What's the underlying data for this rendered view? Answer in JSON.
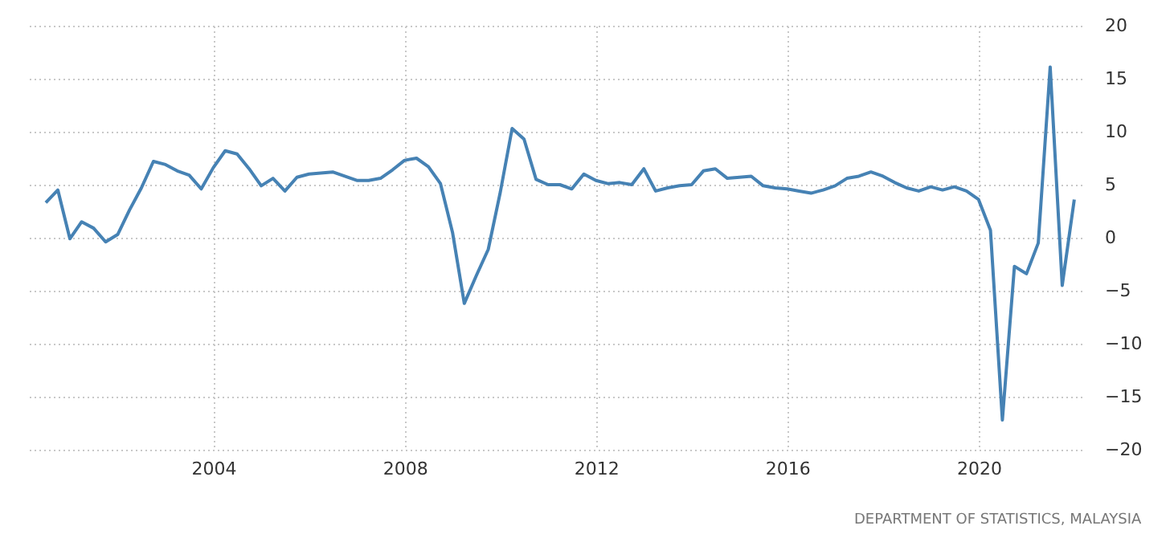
{
  "chart_data": {
    "type": "line",
    "annotations": [
      "DEPARTMENT OF STATISTICS, MALAYSIA"
    ],
    "x": [
      "2000-06-30",
      "2000-09-30",
      "2000-12-31",
      "2001-03-31",
      "2001-06-30",
      "2001-09-30",
      "2001-12-31",
      "2002-03-31",
      "2002-06-30",
      "2002-09-30",
      "2002-12-31",
      "2003-03-31",
      "2003-06-30",
      "2003-09-30",
      "2003-12-31",
      "2004-03-31",
      "2004-06-30",
      "2004-09-30",
      "2004-12-31",
      "2005-03-31",
      "2005-06-30",
      "2005-09-30",
      "2005-12-31",
      "2006-03-31",
      "2006-06-30",
      "2006-09-30",
      "2006-12-31",
      "2007-03-31",
      "2007-06-30",
      "2007-09-30",
      "2007-12-31",
      "2008-03-31",
      "2008-06-30",
      "2008-09-30",
      "2008-12-31",
      "2009-03-31",
      "2009-06-30",
      "2009-09-30",
      "2009-12-31",
      "2010-03-31",
      "2010-06-30",
      "2010-09-30",
      "2010-12-31",
      "2011-03-31",
      "2011-06-30",
      "2011-09-30",
      "2011-12-31",
      "2012-03-31",
      "2012-06-30",
      "2012-09-30",
      "2012-12-31",
      "2013-03-31",
      "2013-06-30",
      "2013-09-30",
      "2013-12-31",
      "2014-03-31",
      "2014-06-30",
      "2014-09-30",
      "2014-12-31",
      "2015-03-31",
      "2015-06-30",
      "2015-09-30",
      "2015-12-31",
      "2016-03-31",
      "2016-06-30",
      "2016-09-30",
      "2016-12-31",
      "2017-03-31",
      "2017-06-30",
      "2017-09-30",
      "2017-12-31",
      "2018-03-31",
      "2018-06-30",
      "2018-09-30",
      "2018-12-31",
      "2019-03-31",
      "2019-06-30",
      "2019-09-30",
      "2019-12-31",
      "2020-03-31",
      "2020-06-30",
      "2020-09-30",
      "2020-12-31",
      "2021-03-31",
      "2021-06-30",
      "2021-09-30",
      "2021-12-31"
    ],
    "series": [
      {
        "color": "#4682b4",
        "values": [
          3.3,
          4.5,
          -0.1,
          1.5,
          0.9,
          -0.4,
          0.3,
          2.6,
          4.7,
          7.2,
          6.9,
          6.3,
          5.9,
          4.6,
          6.6,
          8.2,
          7.9,
          6.5,
          4.9,
          5.6,
          4.4,
          5.7,
          6.0,
          6.1,
          6.2,
          5.8,
          5.4,
          5.4,
          5.6,
          6.4,
          7.3,
          7.5,
          6.7,
          5.1,
          0.5,
          -6.2,
          -3.6,
          -1.1,
          4.3,
          10.3,
          9.3,
          5.5,
          5.0,
          5.0,
          4.6,
          6.0,
          5.4,
          5.1,
          5.2,
          5.0,
          6.5,
          4.4,
          4.7,
          4.9,
          5.0,
          6.3,
          6.5,
          5.6,
          5.7,
          5.8,
          4.9,
          4.7,
          4.6,
          4.4,
          4.2,
          4.5,
          4.9,
          5.6,
          5.8,
          6.2,
          5.8,
          5.2,
          4.7,
          4.4,
          4.8,
          4.5,
          4.8,
          4.4,
          3.6,
          0.7,
          -17.2,
          -2.7,
          -3.4,
          -0.5,
          16.1,
          -4.5,
          3.6
        ]
      }
    ],
    "xlim": [
      "2000-02-10",
      "2022-02-25"
    ],
    "xticks": [
      "2004",
      "2008",
      "2012",
      "2016",
      "2020"
    ],
    "ylim": [
      -20,
      20
    ],
    "yticks": [
      -20,
      -15,
      -10,
      -5,
      0,
      5,
      10,
      15,
      20
    ],
    "grid": true,
    "marker": "none",
    "line_style": "solid"
  }
}
